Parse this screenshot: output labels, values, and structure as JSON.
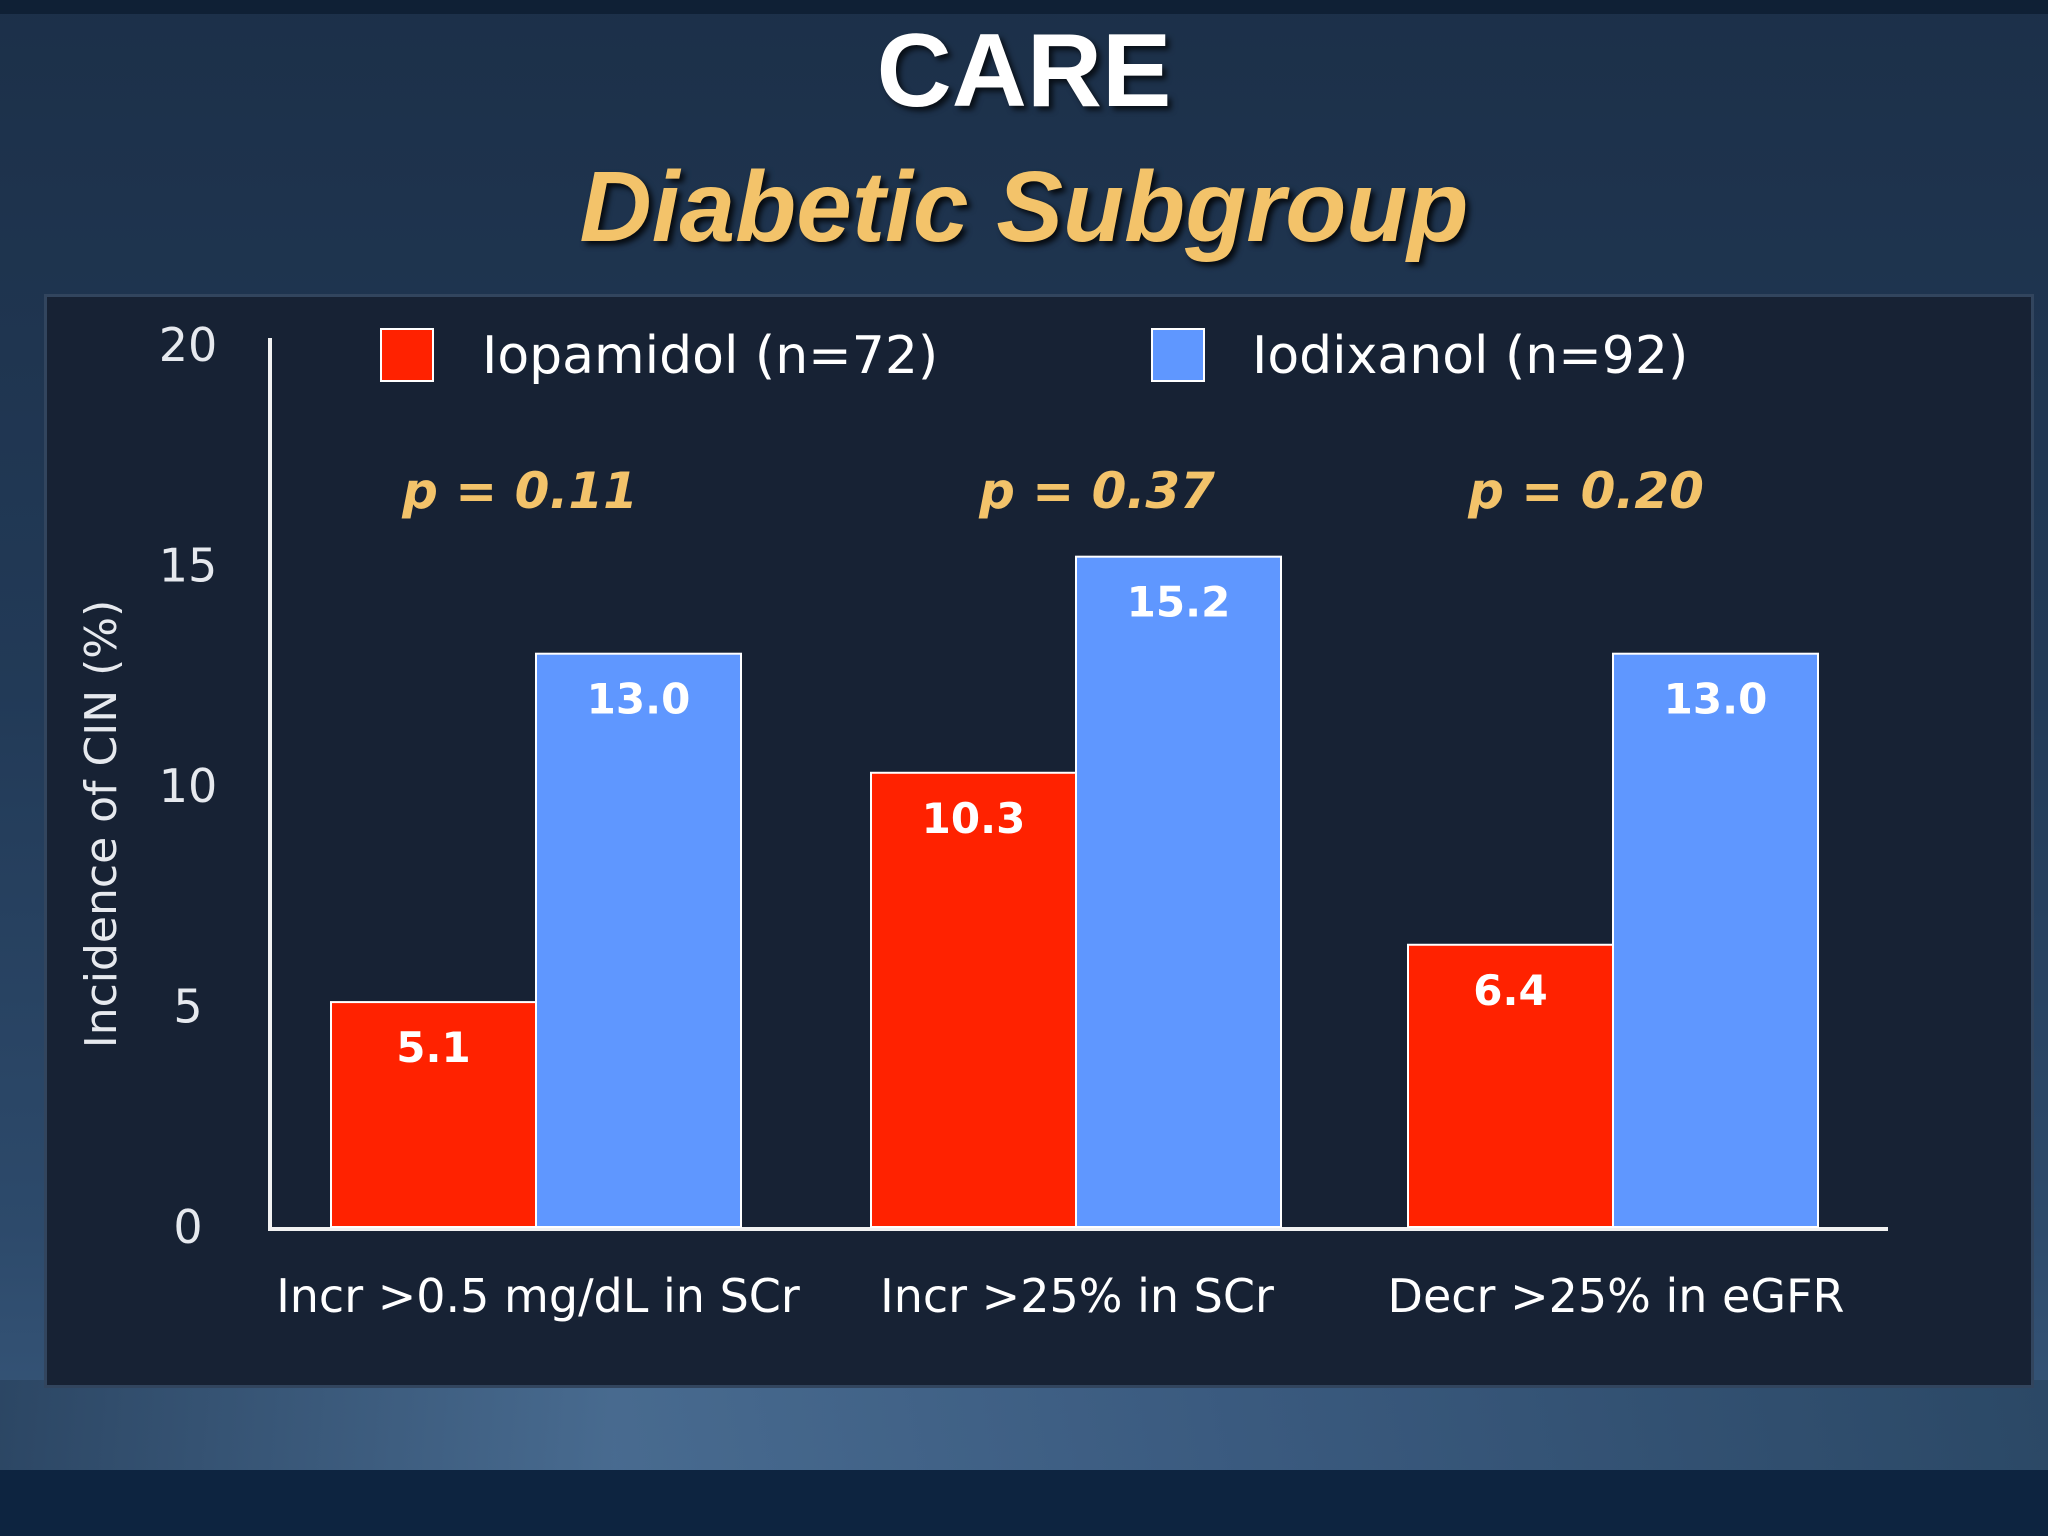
{
  "title": "CARE",
  "subtitle": "Diabetic Subgroup",
  "chart_data": {
    "type": "bar",
    "ylabel": "Incidence of CIN (%)",
    "ylim": [
      0,
      20
    ],
    "yticks": [
      0,
      5,
      10,
      15,
      20
    ],
    "categories": [
      "Incr >0.5 mg/dL in SCr",
      "Incr >25% in SCr",
      "Decr >25% in eGFR"
    ],
    "series": [
      {
        "name": "Iopamidol (n=72)",
        "color": "#ff2200",
        "values": [
          5.1,
          10.3,
          6.4
        ],
        "labels": [
          "5.1",
          "10.3",
          "6.4"
        ]
      },
      {
        "name": "Iodixanol (n=92)",
        "color": "#5f97ff",
        "values": [
          13.0,
          15.2,
          13.0
        ],
        "labels": [
          "13.0",
          "15.2",
          "13.0"
        ]
      }
    ],
    "annotations": [
      "p = 0.11",
      "p = 0.37",
      "p = 0.20"
    ],
    "annotation_color": "#f3c36a",
    "legend_position": "top"
  }
}
